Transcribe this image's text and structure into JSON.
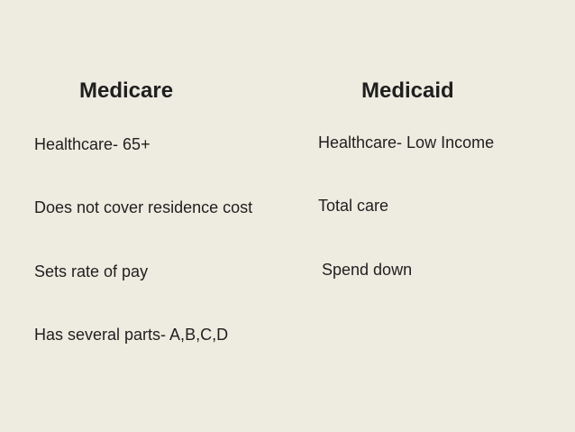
{
  "slide": {
    "columns": [
      {
        "title": "Medicare",
        "items": [
          "Healthcare- 65+",
          "Does not cover residence cost",
          "Sets rate of pay",
          "Has several parts- A,B,C,D"
        ]
      },
      {
        "title": "Medicaid",
        "items": [
          "Healthcare- Low Income",
          "Total care",
          "Spend down"
        ]
      }
    ]
  },
  "colors": {
    "background": "#eeebe0",
    "text": "#1f1f1f"
  }
}
